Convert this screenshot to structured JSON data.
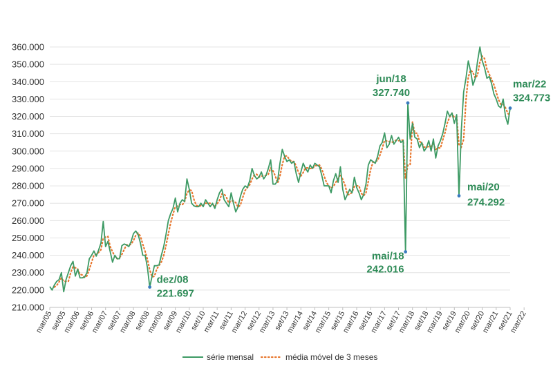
{
  "chart_data": {
    "type": "line",
    "title": "",
    "xlabel": "",
    "ylabel": "",
    "ylim": [
      210000,
      360000
    ],
    "yticks": [
      210000,
      220000,
      230000,
      240000,
      250000,
      260000,
      270000,
      280000,
      290000,
      300000,
      310000,
      320000,
      330000,
      340000,
      350000,
      360000
    ],
    "ytick_labels": [
      "210.000",
      "220.000",
      "230.000",
      "240.000",
      "250.000",
      "260.000",
      "270.000",
      "280.000",
      "290.000",
      "300.000",
      "310.000",
      "320.000",
      "330.000",
      "340.000",
      "350.000",
      "360.000"
    ],
    "grid": true,
    "legend_position": "bottom",
    "start": "mar/05",
    "end": "mar/22",
    "x_tick_labels": [
      "mar/05",
      "set/05",
      "mar/06",
      "set/06",
      "mar/07",
      "set/07",
      "mar/08",
      "set/08",
      "mar/09",
      "set/09",
      "mar/10",
      "set/10",
      "mar/11",
      "set/11",
      "mar/12",
      "set/12",
      "mar/13",
      "set/13",
      "mar/14",
      "set/14",
      "mar/15",
      "set/15",
      "mar/16",
      "set/16",
      "mar/17",
      "set/17",
      "mar/18",
      "set/18",
      "mar/19",
      "set/19",
      "mar/20",
      "set/20",
      "mar/21",
      "set/21",
      "mar/22"
    ],
    "series": [
      {
        "name": "série mensal",
        "color": "#3d9a64",
        "style": "solid",
        "anchors": [
          [
            0,
            222000
          ],
          [
            1,
            220000
          ],
          [
            2,
            223000
          ],
          [
            3,
            225000
          ],
          [
            4,
            226000
          ],
          [
            5,
            230000
          ],
          [
            6,
            219000
          ],
          [
            7,
            226000
          ],
          [
            8,
            230000
          ],
          [
            9,
            234000
          ],
          [
            10,
            236500
          ],
          [
            11,
            228000
          ],
          [
            12,
            232000
          ],
          [
            13,
            227000
          ],
          [
            14,
            227000
          ],
          [
            15,
            227500
          ],
          [
            16,
            230000
          ],
          [
            17,
            238000
          ],
          [
            18,
            240000
          ],
          [
            19,
            242500
          ],
          [
            20,
            239500
          ],
          [
            21,
            243000
          ],
          [
            22,
            247000
          ],
          [
            23,
            259500
          ],
          [
            24,
            245000
          ],
          [
            25,
            248000
          ],
          [
            26,
            242000
          ],
          [
            27,
            236000
          ],
          [
            28,
            240000
          ],
          [
            29,
            238000
          ],
          [
            30,
            238000
          ],
          [
            31,
            245500
          ],
          [
            32,
            246500
          ],
          [
            33,
            246000
          ],
          [
            34,
            245000
          ],
          [
            35,
            248000
          ],
          [
            36,
            252500
          ],
          [
            37,
            254000
          ],
          [
            38,
            252000
          ],
          [
            39,
            247000
          ],
          [
            40,
            240000
          ],
          [
            41,
            240000
          ],
          [
            42,
            233000
          ],
          [
            43,
            221697
          ],
          [
            44,
            228000
          ],
          [
            45,
            234000
          ],
          [
            46,
            234000
          ],
          [
            47,
            234500
          ],
          [
            48,
            240000
          ],
          [
            49,
            245000
          ],
          [
            50,
            252000
          ],
          [
            51,
            260000
          ],
          [
            52,
            264000
          ],
          [
            53,
            267000
          ],
          [
            54,
            273000
          ],
          [
            55,
            265000
          ],
          [
            56,
            270000
          ],
          [
            57,
            272000
          ],
          [
            58,
            271000
          ],
          [
            59,
            284000
          ],
          [
            60,
            278000
          ],
          [
            61,
            270000
          ],
          [
            62,
            268500
          ],
          [
            63,
            268000
          ],
          [
            64,
            268000
          ],
          [
            65,
            270000
          ],
          [
            66,
            268000
          ],
          [
            67,
            272000
          ],
          [
            68,
            270000
          ],
          [
            69,
            268000
          ],
          [
            70,
            270000
          ],
          [
            71,
            267000
          ],
          [
            72,
            272000
          ],
          [
            73,
            276000
          ],
          [
            74,
            278000
          ],
          [
            75,
            272000
          ],
          [
            76,
            270000
          ],
          [
            77,
            268000
          ],
          [
            78,
            276000
          ],
          [
            79,
            270000
          ],
          [
            80,
            265000
          ],
          [
            81,
            268000
          ],
          [
            82,
            274000
          ],
          [
            83,
            278000
          ],
          [
            84,
            280000
          ],
          [
            85,
            279000
          ],
          [
            86,
            283000
          ],
          [
            87,
            290000
          ],
          [
            88,
            286000
          ],
          [
            89,
            284000
          ],
          [
            90,
            285000
          ],
          [
            91,
            288000
          ],
          [
            92,
            284000
          ],
          [
            93,
            286000
          ],
          [
            94,
            290000
          ],
          [
            95,
            295000
          ],
          [
            96,
            281000
          ],
          [
            97,
            281000
          ],
          [
            98,
            283000
          ],
          [
            99,
            293000
          ],
          [
            100,
            301000
          ],
          [
            101,
            297000
          ],
          [
            102,
            294000
          ],
          [
            103,
            295000
          ],
          [
            104,
            293000
          ],
          [
            105,
            294000
          ],
          [
            106,
            287000
          ],
          [
            107,
            282000
          ],
          [
            108,
            288000
          ],
          [
            109,
            293000
          ],
          [
            110,
            290000
          ],
          [
            111,
            288000
          ],
          [
            112,
            292000
          ],
          [
            113,
            290000
          ],
          [
            114,
            293000
          ],
          [
            115,
            292000
          ],
          [
            116,
            291000
          ],
          [
            117,
            286000
          ],
          [
            118,
            280000
          ],
          [
            119,
            280000
          ],
          [
            120,
            280000
          ],
          [
            121,
            276000
          ],
          [
            122,
            283000
          ],
          [
            123,
            287000
          ],
          [
            124,
            282000
          ],
          [
            125,
            291000
          ],
          [
            126,
            278000
          ],
          [
            127,
            272000
          ],
          [
            128,
            275000
          ],
          [
            129,
            278000
          ],
          [
            130,
            276000
          ],
          [
            131,
            285000
          ],
          [
            132,
            279000
          ],
          [
            133,
            276000
          ],
          [
            134,
            272000
          ],
          [
            135,
            275000
          ],
          [
            136,
            281000
          ],
          [
            137,
            292000
          ],
          [
            138,
            295000
          ],
          [
            139,
            294000
          ],
          [
            140,
            293000
          ],
          [
            141,
            297000
          ],
          [
            142,
            303000
          ],
          [
            143,
            305000
          ],
          [
            144,
            310500
          ],
          [
            145,
            302000
          ],
          [
            146,
            304000
          ],
          [
            147,
            309000
          ],
          [
            148,
            304000
          ],
          [
            149,
            306000
          ],
          [
            150,
            308000
          ],
          [
            151,
            305000
          ],
          [
            152,
            306000
          ],
          [
            153,
            242016
          ],
          [
            154,
            327740
          ],
          [
            155,
            307000
          ],
          [
            156,
            316000
          ],
          [
            157,
            308000
          ],
          [
            158,
            307000
          ],
          [
            159,
            302000
          ],
          [
            160,
            305000
          ],
          [
            161,
            300000
          ],
          [
            162,
            302000
          ],
          [
            163,
            306000
          ],
          [
            164,
            300000
          ],
          [
            165,
            307000
          ],
          [
            166,
            296000
          ],
          [
            167,
            303000
          ],
          [
            168,
            306000
          ],
          [
            169,
            310000
          ],
          [
            170,
            316000
          ],
          [
            171,
            323000
          ],
          [
            172,
            320000
          ],
          [
            173,
            322000
          ],
          [
            174,
            316000
          ],
          [
            175,
            321000
          ],
          [
            176,
            274292
          ],
          [
            177,
            312000
          ],
          [
            178,
            334000
          ],
          [
            179,
            342000
          ],
          [
            180,
            352000
          ],
          [
            181,
            346000
          ],
          [
            182,
            338000
          ],
          [
            183,
            342000
          ],
          [
            184,
            352000
          ],
          [
            185,
            360000
          ],
          [
            186,
            352000
          ],
          [
            187,
            348000
          ],
          [
            188,
            342000
          ],
          [
            189,
            343000
          ],
          [
            190,
            339000
          ],
          [
            191,
            333000
          ],
          [
            192,
            330000
          ],
          [
            193,
            326000
          ],
          [
            194,
            325000
          ],
          [
            195,
            330000
          ],
          [
            196,
            320000
          ],
          [
            197,
            315500
          ],
          [
            198,
            324773
          ]
        ]
      },
      {
        "name": "média móvel de 3 meses",
        "color": "#e8772e",
        "style": "dotted"
      }
    ],
    "annotations": [
      {
        "month_index": 43,
        "label": "dez/08",
        "value_text": "221.697",
        "align": "right"
      },
      {
        "month_index": 153,
        "label": "mai/18",
        "value_text": "242.016",
        "align": "left"
      },
      {
        "month_index": 154,
        "label": "jun/18",
        "value_text": "327.740",
        "align": "left-above"
      },
      {
        "month_index": 176,
        "label": "mai/20",
        "value_text": "274.292",
        "align": "right"
      },
      {
        "month_index": 198,
        "label": "mar/22",
        "value_text": "324.773",
        "align": "right-above"
      }
    ]
  }
}
